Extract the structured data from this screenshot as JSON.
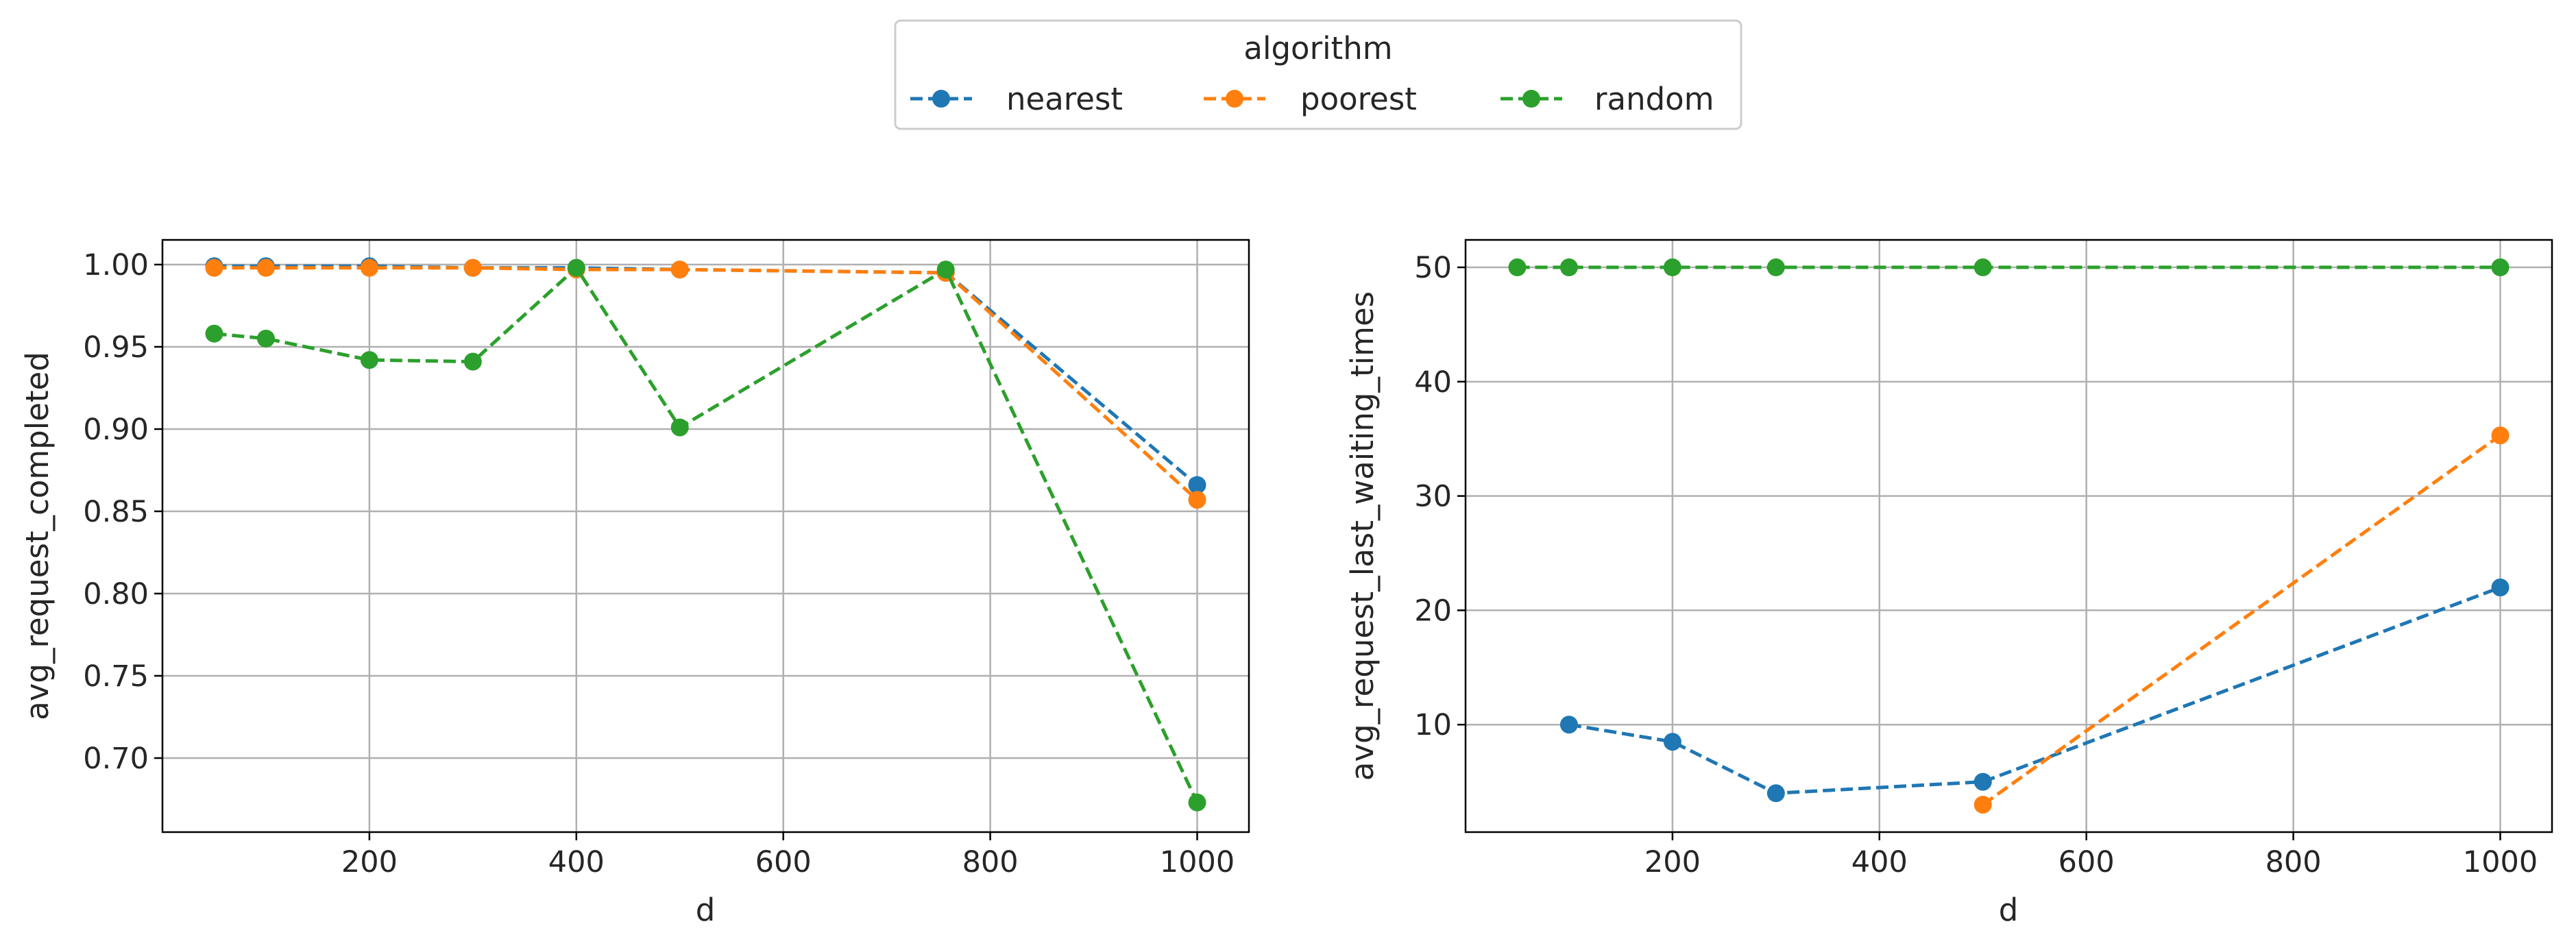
{
  "legend": {
    "title": "algorithm",
    "entries": [
      {
        "label": "nearest",
        "color": "#1f77b4"
      },
      {
        "label": "poorest",
        "color": "#ff7f0e"
      },
      {
        "label": "random",
        "color": "#2ca02c"
      }
    ],
    "placement": "top-center"
  },
  "chart_data": [
    {
      "type": "line",
      "xlabel": "d",
      "ylabel": "avg_request_completed",
      "xlim": [
        0,
        1050
      ],
      "ylim": [
        0.655,
        1.015
      ],
      "xticks": [
        200,
        400,
        600,
        800,
        1000
      ],
      "yticks": [
        0.7,
        0.75,
        0.8,
        0.85,
        0.9,
        0.95,
        1.0
      ],
      "ytick_labels": [
        "0.70",
        "0.75",
        "0.80",
        "0.85",
        "0.90",
        "0.95",
        "1.00"
      ],
      "grid": true,
      "series": [
        {
          "name": "nearest",
          "color": "#1f77b4",
          "x": [
            50,
            100,
            200,
            300,
            400,
            500,
            757,
            1000
          ],
          "y": [
            0.999,
            0.999,
            0.999,
            0.998,
            0.998,
            0.997,
            0.995,
            0.866
          ]
        },
        {
          "name": "poorest",
          "color": "#ff7f0e",
          "x": [
            50,
            100,
            200,
            300,
            400,
            500,
            757,
            1000
          ],
          "y": [
            0.998,
            0.998,
            0.998,
            0.998,
            0.997,
            0.997,
            0.995,
            0.857
          ]
        },
        {
          "name": "random",
          "color": "#2ca02c",
          "x": [
            50,
            100,
            200,
            300,
            400,
            500,
            757,
            1000
          ],
          "y": [
            0.958,
            0.955,
            0.942,
            0.941,
            0.998,
            0.901,
            0.997,
            0.673
          ]
        }
      ]
    },
    {
      "type": "line",
      "xlabel": "d",
      "ylabel": "avg_request_last_waiting_times",
      "xlim": [
        0,
        1050
      ],
      "ylim": [
        0.6,
        52.4
      ],
      "xticks": [
        200,
        400,
        600,
        800,
        1000
      ],
      "yticks": [
        10,
        20,
        30,
        40,
        50
      ],
      "ytick_labels": [
        "10",
        "20",
        "30",
        "40",
        "50"
      ],
      "grid": true,
      "series": [
        {
          "name": "nearest",
          "color": "#1f77b4",
          "x": [
            100,
            200,
            300,
            500,
            1000
          ],
          "y": [
            10.0,
            8.5,
            4.0,
            5.0,
            22.0
          ]
        },
        {
          "name": "poorest",
          "color": "#ff7f0e",
          "x": [
            500,
            1000
          ],
          "y": [
            3.0,
            35.3
          ]
        },
        {
          "name": "random",
          "color": "#2ca02c",
          "x": [
            50,
            100,
            200,
            300,
            500,
            1000
          ],
          "y": [
            50,
            50,
            50,
            50,
            50,
            50
          ]
        }
      ]
    }
  ]
}
